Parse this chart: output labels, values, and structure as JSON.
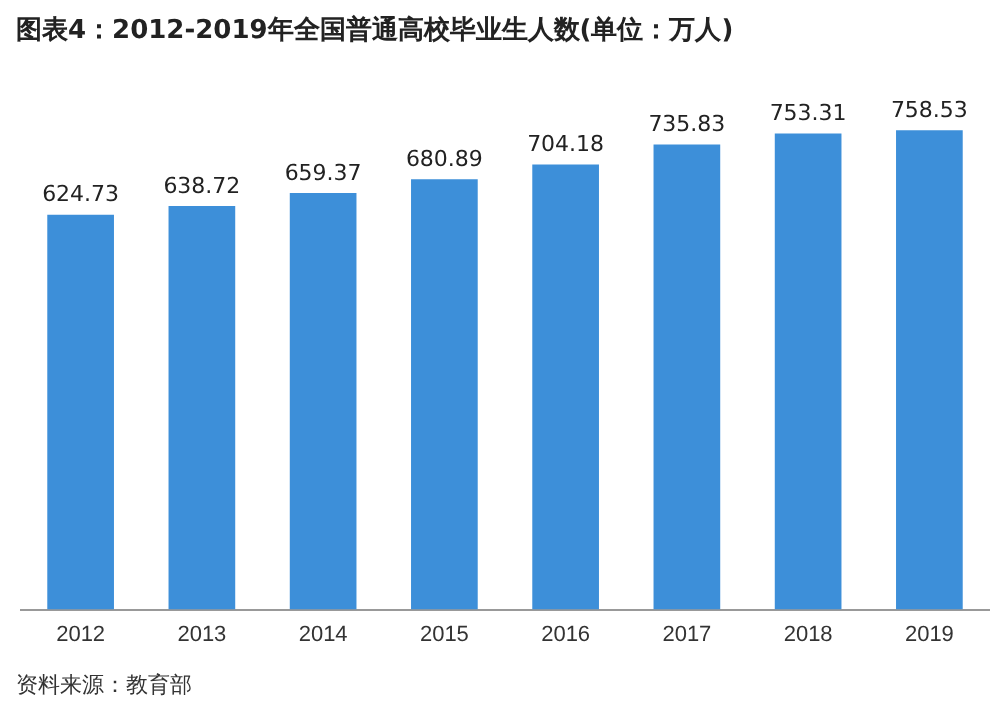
{
  "chart_data": {
    "type": "bar",
    "title": "图表4：2012-2019年全国普通高校毕业生人数(单位：万人)",
    "categories": [
      "2012",
      "2013",
      "2014",
      "2015",
      "2016",
      "2017",
      "2018",
      "2019"
    ],
    "values": [
      624.73,
      638.72,
      659.37,
      680.89,
      704.18,
      735.83,
      753.31,
      758.53
    ],
    "color": "#3d8fd9",
    "data_labels": true,
    "grid": false,
    "legend": false,
    "tick_labels": "x",
    "annotations": [
      "资料来源：教育部"
    ]
  }
}
